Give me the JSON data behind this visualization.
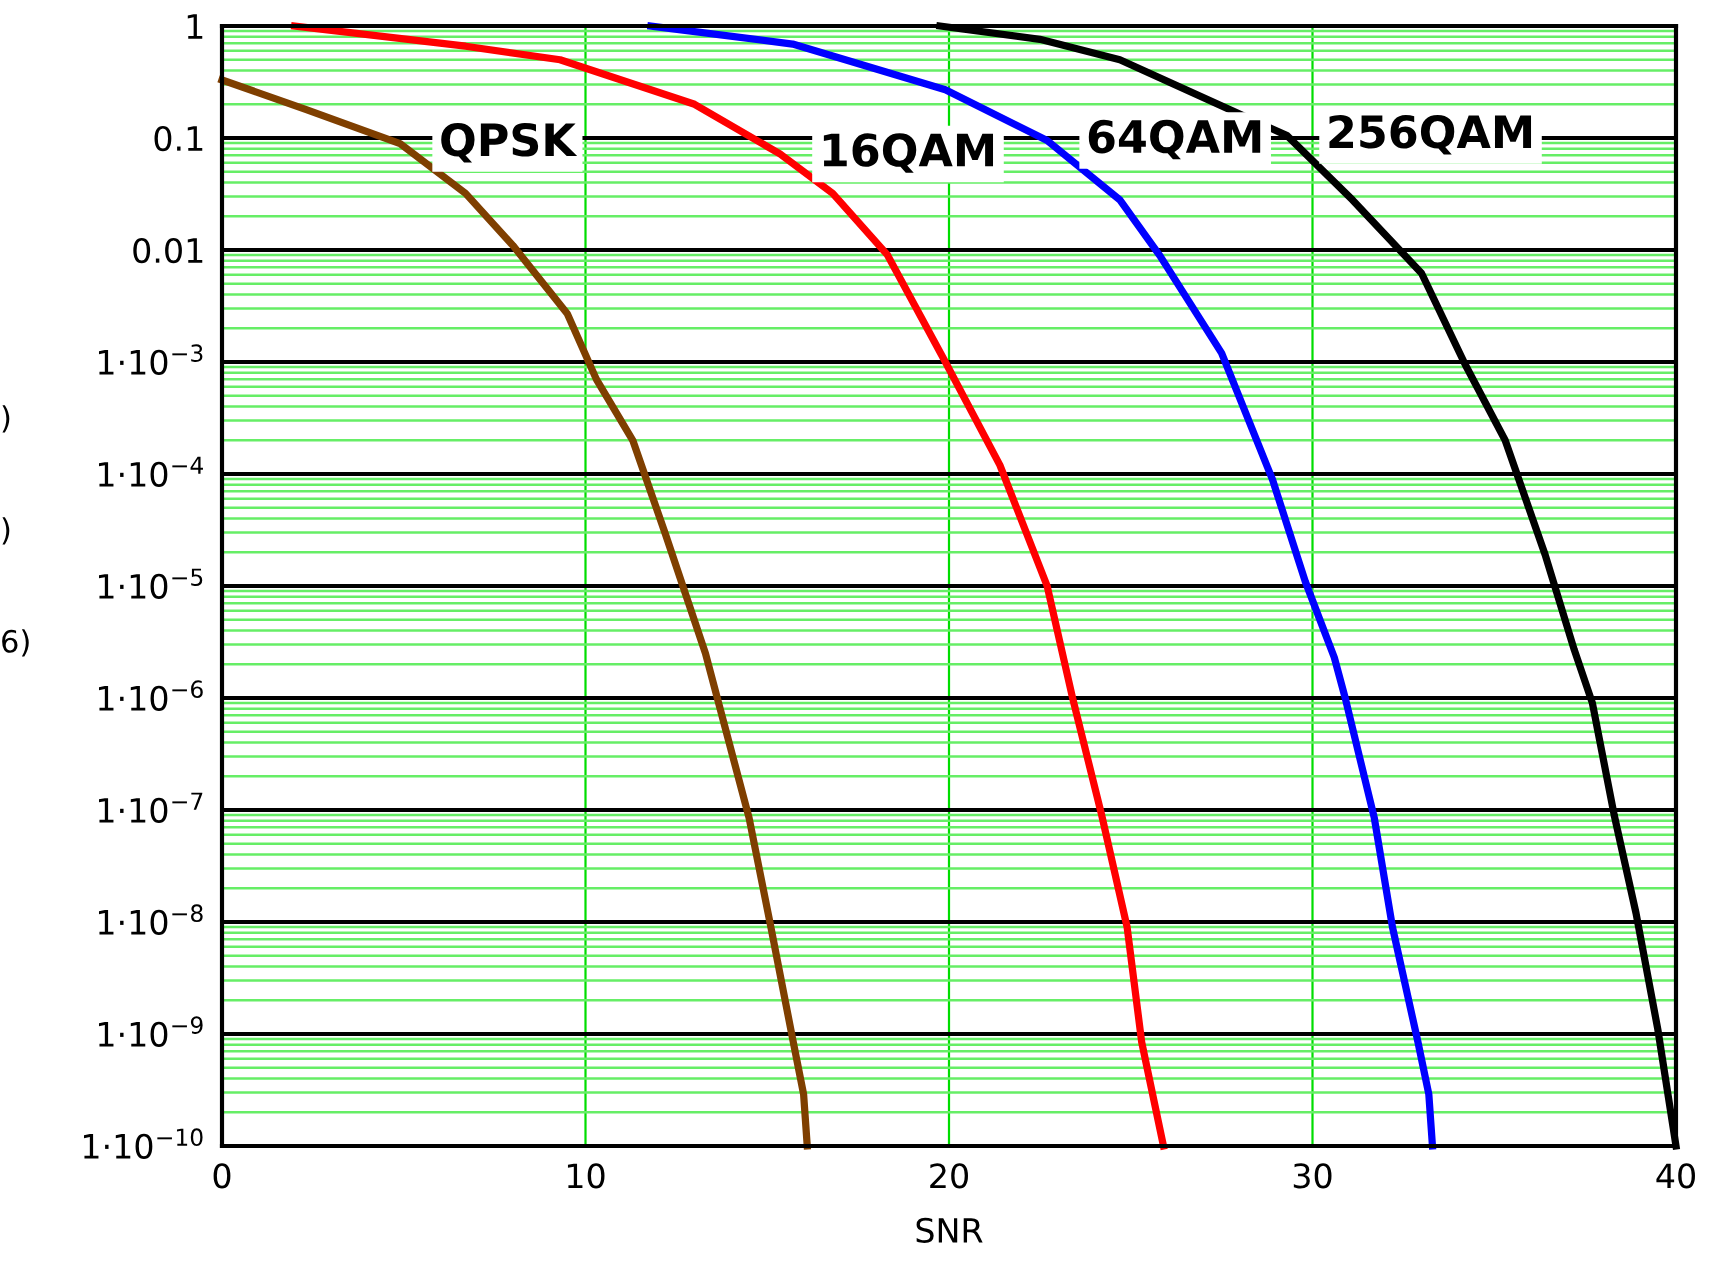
{
  "chart_data": {
    "type": "line",
    "xlabel": "SNR",
    "log": "y",
    "grid": true,
    "line_style": "solid",
    "marker": "none",
    "xlim": [
      0,
      40
    ],
    "xticks": [
      0,
      10,
      20,
      30,
      40
    ],
    "ylim": [
      1e-10,
      1
    ],
    "yticks": [
      {
        "value": 1e-10,
        "label": "1·10$^{−10}$"
      },
      {
        "value": 1e-09,
        "label": "1·10$^{−9}$"
      },
      {
        "value": 1e-08,
        "label": "1·10$^{−8}$"
      },
      {
        "value": 1e-07,
        "label": "1·10$^{−7}$"
      },
      {
        "value": 1e-06,
        "label": "1·10$^{−6}$"
      },
      {
        "value": 1e-05,
        "label": "1·10$^{−5}$"
      },
      {
        "value": 0.0001,
        "label": "1·10$^{−4}$"
      },
      {
        "value": 0.001,
        "label": "1·10$^{−3}$"
      },
      0.01,
      0.1,
      1,
      {
        "value": 2e-10,
        "label": null
      },
      {
        "value": 3e-10,
        "label": null
      },
      {
        "value": 4e-10,
        "label": null
      },
      {
        "value": 5e-10,
        "label": null
      },
      {
        "value": 6e-10,
        "label": null
      },
      {
        "value": 7e-10,
        "label": null
      },
      {
        "value": 8e-10,
        "label": null
      },
      {
        "value": 9e-10,
        "label": null
      },
      {
        "value": 2e-09,
        "label": null
      },
      {
        "value": 3e-09,
        "label": null
      },
      {
        "value": 4e-09,
        "label": null
      },
      {
        "value": 5e-09,
        "label": null
      },
      {
        "value": 6e-09,
        "label": null
      },
      {
        "value": 7e-09,
        "label": null
      },
      {
        "value": 8e-09,
        "label": null
      },
      {
        "value": 9e-09,
        "label": null
      },
      {
        "value": 2e-08,
        "label": null
      },
      {
        "value": 3e-08,
        "label": null
      },
      {
        "value": 4e-08,
        "label": null
      },
      {
        "value": 5e-08,
        "label": null
      },
      {
        "value": 6e-08,
        "label": null
      },
      {
        "value": 7e-08,
        "label": null
      },
      {
        "value": 8e-08,
        "label": null
      },
      {
        "value": 9e-08,
        "label": null
      },
      {
        "value": 2e-07,
        "label": null
      },
      {
        "value": 3e-07,
        "label": null
      },
      {
        "value": 4e-07,
        "label": null
      },
      {
        "value": 5e-07,
        "label": null
      },
      {
        "value": 6e-07,
        "label": null
      },
      {
        "value": 7e-07,
        "label": null
      },
      {
        "value": 8e-07,
        "label": null
      },
      {
        "value": 9e-07,
        "label": null
      },
      {
        "value": 2e-06,
        "label": null
      },
      {
        "value": 3e-06,
        "label": null
      },
      {
        "value": 4e-06,
        "label": null
      },
      {
        "value": 5e-06,
        "label": null
      },
      {
        "value": 6e-06,
        "label": null
      },
      {
        "value": 7e-06,
        "label": null
      },
      {
        "value": 8e-06,
        "label": null
      },
      {
        "value": 9e-06,
        "label": null
      },
      {
        "value": 2e-05,
        "label": null
      },
      {
        "value": 3e-05,
        "label": null
      },
      {
        "value": 4e-05,
        "label": null
      },
      {
        "value": 5e-05,
        "label": null
      },
      {
        "value": 6e-05,
        "label": null
      },
      {
        "value": 7e-05,
        "label": null
      },
      {
        "value": 8e-05,
        "label": null
      },
      {
        "value": 9e-05,
        "label": null
      },
      {
        "value": 0.0002,
        "label": null
      },
      {
        "value": 0.0003,
        "label": null
      },
      {
        "value": 0.0004,
        "label": null
      },
      {
        "value": 0.0005,
        "label": null
      },
      {
        "value": 0.0006,
        "label": null
      },
      {
        "value": 0.0007,
        "label": null
      },
      {
        "value": 0.0008,
        "label": null
      },
      {
        "value": 0.0009,
        "label": null
      },
      {
        "value": 0.002,
        "label": null
      },
      {
        "value": 0.003,
        "label": null
      },
      {
        "value": 0.004,
        "label": null
      },
      {
        "value": 0.005,
        "label": null
      },
      {
        "value": 0.006,
        "label": null
      },
      {
        "value": 0.007,
        "label": null
      },
      {
        "value": 0.008,
        "label": null
      },
      {
        "value": 0.009,
        "label": null
      },
      {
        "value": 0.02,
        "label": null
      },
      {
        "value": 0.03,
        "label": null
      },
      {
        "value": 0.04,
        "label": null
      },
      {
        "value": 0.05,
        "label": null
      },
      {
        "value": 0.06,
        "label": null
      },
      {
        "value": 0.07,
        "label": null
      },
      {
        "value": 0.08,
        "label": null
      },
      {
        "value": 0.09,
        "label": null
      },
      {
        "value": 0.2,
        "label": null
      },
      {
        "value": 0.3,
        "label": null
      },
      {
        "value": 0.4,
        "label": null
      },
      {
        "value": 0.5,
        "label": null
      },
      {
        "value": 0.6,
        "label": null
      },
      {
        "value": 0.7,
        "label": null
      },
      {
        "value": 0.8,
        "label": null
      },
      {
        "value": 0.9,
        "label": null
      }
    ],
    "series": [
      {
        "name": "QPSK",
        "color": "#7f3f00",
        "x": [
          0,
          2.3,
          4.9,
          6.7,
          8.0,
          9.5,
          10.3,
          11.3,
          12.2,
          13.3,
          14.5,
          15.1,
          15.7,
          16.0,
          16.1
        ],
        "values": [
          0.33,
          0.18,
          0.089,
          0.032,
          0.011,
          0.0027,
          0.0007,
          0.0002,
          2.9e-05,
          2.5e-06,
          8.5e-08,
          9e-09,
          9e-10,
          2.9e-10,
          1e-10
        ]
      },
      {
        "name": "16QAM",
        "color": "#ff0000",
        "x": [
          2.0,
          6.7,
          9.3,
          13.0,
          15.35,
          16.8,
          18.3,
          19.9,
          21.4,
          22.7,
          23.4,
          24.2,
          24.9,
          25.3,
          25.9
        ],
        "values": [
          1,
          0.66,
          0.5,
          0.2,
          0.072,
          0.032,
          0.0091,
          0.001,
          0.00012,
          1e-05,
          1e-06,
          9e-08,
          9e-09,
          8.5e-10,
          1e-10
        ]
      },
      {
        "name": "64QAM",
        "color": "#0000ff",
        "x": [
          11.8,
          15.7,
          19.9,
          22.7,
          24.7,
          25.8,
          27.5,
          28.9,
          29.8,
          30.6,
          30.9,
          31.7,
          32.2,
          32.9,
          33.2,
          33.3
        ],
        "values": [
          1,
          0.69,
          0.27,
          0.095,
          0.028,
          0.0089,
          0.0012,
          8.9e-05,
          1.1e-05,
          2.3e-06,
          1e-06,
          8.5e-08,
          9e-09,
          8.5e-10,
          2.9e-10,
          1e-10
        ]
      },
      {
        "name": "256QAM",
        "color": "#000000",
        "x": [
          19.75,
          22.5,
          24.7,
          29.3,
          31.1,
          33.0,
          34.2,
          35.3,
          36.4,
          37.2,
          37.7,
          38.3,
          38.9,
          39.5,
          40.0
        ],
        "values": [
          1,
          0.76,
          0.5,
          0.105,
          0.028,
          0.0062,
          0.00095,
          0.0002,
          1.9e-05,
          2.7e-06,
          9e-07,
          9e-08,
          1.2e-08,
          1.1e-09,
          1e-10
        ]
      }
    ],
    "annotations": [
      ")",
      ")",
      "6)"
    ]
  }
}
